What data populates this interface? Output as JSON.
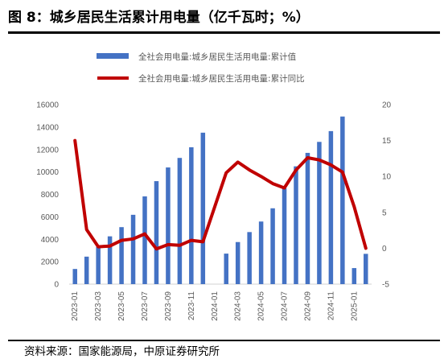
{
  "title": "图 8：城乡居民生活累计用电量（亿千瓦时；%）",
  "source": "资料来源：国家能源局，中原证券研究所",
  "chart_data": {
    "type": "bar+line",
    "categories": [
      "2023-01",
      "2023-02",
      "2023-03",
      "2023-04",
      "2023-05",
      "2023-06",
      "2023-07",
      "2023-08",
      "2023-09",
      "2023-10",
      "2023-11",
      "2023-12",
      "2024-01",
      "2024-02",
      "2024-03",
      "2024-04",
      "2024-05",
      "2024-06",
      "2024-07",
      "2024-08",
      "2024-09",
      "2024-10",
      "2024-11",
      "2024-12",
      "2025-01",
      "2025-02"
    ],
    "x_tick_labels": [
      "2023-01",
      "2023-03",
      "2023-05",
      "2023-07",
      "2023-09",
      "2023-11",
      "2024-01",
      "2024-03",
      "2024-05",
      "2024-07",
      "2024-09",
      "2024-11",
      "2025-01"
    ],
    "series": [
      {
        "name": "全社会用电量:城乡居民生活用电量:累计值",
        "kind": "bar",
        "axis": "left",
        "color": "#4472C4",
        "values": [
          1350,
          2450,
          3320,
          4260,
          5080,
          6180,
          7820,
          9180,
          10400,
          11250,
          12200,
          13500,
          null,
          2720,
          3750,
          4640,
          5580,
          6760,
          8560,
          10500,
          11700,
          12680,
          13640,
          14940,
          1430,
          2700
        ]
      },
      {
        "name": "全社会用电量:城乡居民生活用电量:累计同比",
        "kind": "line",
        "axis": "right",
        "color": "#C00000",
        "values": [
          15.0,
          2.6,
          0.2,
          0.3,
          1.1,
          1.3,
          2.0,
          -0.1,
          0.5,
          0.4,
          1.1,
          0.9,
          null,
          10.5,
          12.0,
          10.9,
          10.0,
          9.0,
          8.4,
          10.9,
          12.6,
          12.3,
          11.6,
          10.6,
          5.8,
          0.0
        ]
      }
    ],
    "y_left": {
      "min": 0,
      "max": 16000,
      "step": 2000
    },
    "y_right": {
      "min": -5,
      "max": 20,
      "step": 5
    },
    "legend_position": "top-center",
    "grid": false
  }
}
